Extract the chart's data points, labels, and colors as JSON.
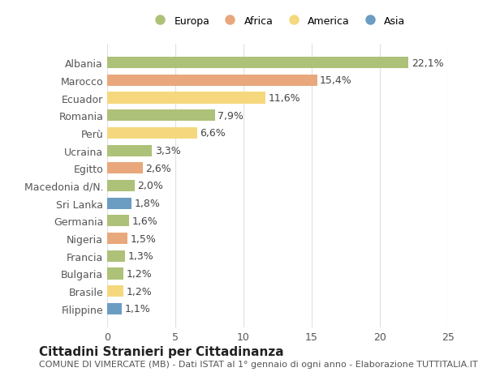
{
  "categories": [
    "Filippine",
    "Brasile",
    "Bulgaria",
    "Francia",
    "Nigeria",
    "Germania",
    "Sri Lanka",
    "Macedonia d/N.",
    "Egitto",
    "Ucraina",
    "Perù",
    "Romania",
    "Ecuador",
    "Marocco",
    "Albania"
  ],
  "values": [
    1.1,
    1.2,
    1.2,
    1.3,
    1.5,
    1.6,
    1.8,
    2.0,
    2.6,
    3.3,
    6.6,
    7.9,
    11.6,
    15.4,
    22.1
  ],
  "labels": [
    "1,1%",
    "1,2%",
    "1,2%",
    "1,3%",
    "1,5%",
    "1,6%",
    "1,8%",
    "2,0%",
    "2,6%",
    "3,3%",
    "6,6%",
    "7,9%",
    "11,6%",
    "15,4%",
    "22,1%"
  ],
  "continents": [
    "Asia",
    "America",
    "Europa",
    "Europa",
    "Africa",
    "Europa",
    "Asia",
    "Europa",
    "Africa",
    "Europa",
    "America",
    "Europa",
    "America",
    "Africa",
    "Europa"
  ],
  "colors": {
    "Europa": "#adc178",
    "Africa": "#e8a87c",
    "America": "#f5d87e",
    "Asia": "#6b9dc2"
  },
  "legend_order": [
    "Europa",
    "Africa",
    "America",
    "Asia"
  ],
  "title": "Cittadini Stranieri per Cittadinanza",
  "subtitle": "COMUNE DI VIMERCATE (MB) - Dati ISTAT al 1° gennaio di ogni anno - Elaborazione TUTTITALIA.IT",
  "xlim": [
    0,
    25
  ],
  "xticks": [
    0,
    5,
    10,
    15,
    20,
    25
  ],
  "background_color": "#ffffff",
  "grid_color": "#e0e0e0",
  "bar_height": 0.65,
  "label_fontsize": 9,
  "tick_fontsize": 9,
  "title_fontsize": 11,
  "subtitle_fontsize": 8
}
